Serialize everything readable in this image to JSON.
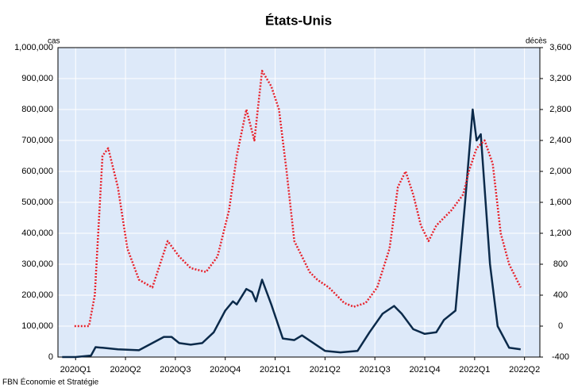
{
  "chart_data": {
    "type": "line",
    "title": "États-Unis",
    "y_label": "cas",
    "y2_label": "décès",
    "source": "FBN Économie et Stratégie",
    "xlim": [
      -4.6,
      121
    ],
    "xticks": [
      {
        "value": 0,
        "label": "2020Q1"
      },
      {
        "value": 13,
        "label": "2020Q2"
      },
      {
        "value": 26,
        "label": "2020Q3"
      },
      {
        "value": 39,
        "label": "2020Q4"
      },
      {
        "value": 52,
        "label": "2021Q1"
      },
      {
        "value": 65,
        "label": "2021Q2"
      },
      {
        "value": 78,
        "label": "2021Q3"
      },
      {
        "value": 91,
        "label": "2021Q4"
      },
      {
        "value": 104,
        "label": "2022Q1"
      },
      {
        "value": 117,
        "label": "2022Q2"
      }
    ],
    "ylim": [
      0,
      1000000
    ],
    "yticks": [
      0,
      {
        "value": 100000,
        "label": "100,000"
      },
      {
        "value": 200000,
        "label": "200,000"
      },
      {
        "value": 300000,
        "label": "300,000"
      },
      {
        "value": 400000,
        "label": "400,000"
      },
      {
        "value": 500000,
        "label": "500,000"
      },
      {
        "value": 600000,
        "label": "600,000"
      },
      {
        "value": 700000,
        "label": "700,000"
      },
      {
        "value": 800000,
        "label": "800,000"
      },
      {
        "value": 900000,
        "label": "900,000"
      },
      {
        "value": 1000000,
        "label": "1,000,000"
      }
    ],
    "y2lim": [
      -400,
      3600
    ],
    "y2ticks": [
      -400,
      0,
      400,
      800,
      {
        "value": 1200,
        "label": "1,200"
      },
      {
        "value": 1600,
        "label": "1,600"
      },
      {
        "value": 2000,
        "label": "2,000"
      },
      {
        "value": 2400,
        "label": "2,400"
      },
      {
        "value": 2800,
        "label": "2,800"
      },
      {
        "value": 3200,
        "label": "3,200"
      },
      {
        "value": 3600,
        "label": "3,600"
      }
    ],
    "grid": true,
    "background": "#dde9f9",
    "series": [
      {
        "color": "#0b2a4a",
        "style": "solid",
        "x": [
          -3.5,
          0,
          4,
          5.2,
          7,
          11,
          16.5,
          20,
          23,
          25,
          27,
          30,
          33,
          36,
          39,
          41,
          42,
          44.5,
          46,
          47,
          48.6,
          51,
          54,
          57,
          59,
          62,
          65,
          69,
          73.5,
          76.6,
          80,
          83,
          85,
          88,
          91,
          94,
          96,
          99,
          101.5,
          103.5,
          104.5,
          105.6,
          108,
          110,
          113,
          116
        ],
        "values": [
          0,
          0,
          5000,
          32000,
          30000,
          25000,
          22000,
          45000,
          65000,
          65000,
          45000,
          40000,
          45000,
          80000,
          150000,
          180000,
          170000,
          220000,
          210000,
          180000,
          250000,
          170000,
          60000,
          55000,
          70000,
          45000,
          20000,
          15000,
          20000,
          80000,
          140000,
          165000,
          140000,
          90000,
          75000,
          80000,
          120000,
          150000,
          500000,
          800000,
          700000,
          720000,
          300000,
          100000,
          30000,
          25000
        ]
      },
      {
        "color": "#e8222b",
        "style": "dotted",
        "axis": "y2",
        "x": [
          -0.3,
          3.5,
          5,
          7,
          8.5,
          11,
          13.5,
          16.5,
          20,
          22,
          24,
          27,
          30,
          34,
          37,
          40,
          42,
          44.5,
          46.6,
          48.6,
          51,
          53,
          55,
          57,
          59,
          61,
          63,
          66,
          68,
          70,
          72.5,
          75.6,
          78.6,
          81.8,
          84,
          86,
          88,
          90,
          92,
          94,
          96,
          98,
          101,
          102.5,
          104.5,
          106.6,
          108.7,
          110.8,
          113,
          116
        ],
        "values": [
          0,
          0,
          400,
          2200,
          2300,
          1800,
          1000,
          600,
          500,
          800,
          1100,
          900,
          750,
          700,
          900,
          1500,
          2200,
          2800,
          2400,
          3300,
          3100,
          2800,
          2000,
          1100,
          900,
          700,
          600,
          500,
          400,
          300,
          250,
          300,
          500,
          1000,
          1800,
          2000,
          1700,
          1300,
          1100,
          1300,
          1400,
          1500,
          1700,
          2000,
          2300,
          2400,
          2100,
          1200,
          800,
          500
        ]
      }
    ]
  }
}
